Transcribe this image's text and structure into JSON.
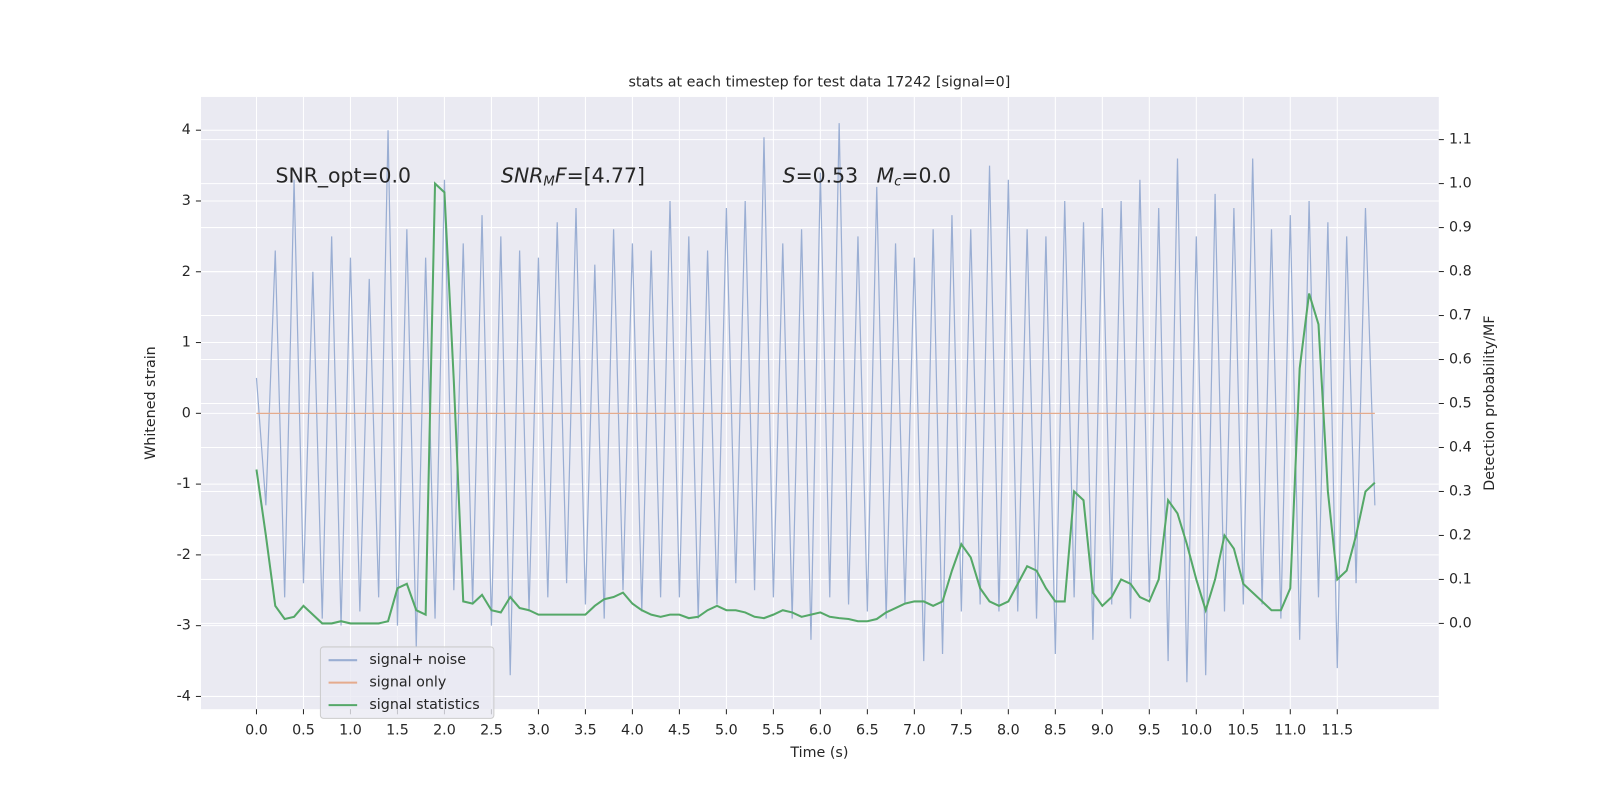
{
  "chart_data": {
    "type": "line",
    "title": "stats at each timestep for test data 17242 [signal=0]",
    "xlabel": "Time (s)",
    "ylabel": "Whitened strain",
    "y2label": "Detection probability/MF",
    "x": [
      0,
      0.1,
      0.2,
      0.3,
      0.4,
      0.5,
      0.6,
      0.7,
      0.8,
      0.9,
      1,
      1.1,
      1.2,
      1.3,
      1.4,
      1.5,
      1.6,
      1.7,
      1.8,
      1.9,
      2,
      2.1,
      2.2,
      2.3,
      2.4,
      2.5,
      2.6,
      2.7,
      2.8,
      2.9,
      3,
      3.1,
      3.2,
      3.3,
      3.4,
      3.5,
      3.6,
      3.7,
      3.8,
      3.9,
      4,
      4.1,
      4.2,
      4.3,
      4.4,
      4.5,
      4.6,
      4.7,
      4.8,
      4.9,
      5,
      5.1,
      5.2,
      5.3,
      5.4,
      5.5,
      5.6,
      5.7,
      5.8,
      5.9,
      6,
      6.1,
      6.2,
      6.3,
      6.4,
      6.5,
      6.6,
      6.7,
      6.8,
      6.9,
      7,
      7.1,
      7.2,
      7.3,
      7.4,
      7.5,
      7.6,
      7.7,
      7.8,
      7.9,
      8,
      8.1,
      8.2,
      8.3,
      8.4,
      8.5,
      8.6,
      8.7,
      8.8,
      8.9,
      9,
      9.1,
      9.2,
      9.3,
      9.4,
      9.5,
      9.6,
      9.7,
      9.8,
      9.9,
      10,
      10.1,
      10.2,
      10.3,
      10.4,
      10.5,
      10.6,
      10.7,
      10.8,
      10.9,
      11,
      11.1,
      11.2,
      11.3,
      11.4,
      11.5,
      11.6,
      11.7,
      11.8,
      11.9
    ],
    "series": [
      {
        "name": "signal+ noise",
        "color": "#9aaed3",
        "values": [
          0.5,
          -1.3,
          2.3,
          -2.6,
          3.3,
          -2.4,
          2.0,
          -2.9,
          2.5,
          -3.0,
          2.2,
          -2.8,
          1.9,
          -2.6,
          4.0,
          -3.0,
          2.6,
          -3.3,
          2.2,
          -2.9,
          3.3,
          -2.5,
          2.4,
          -2.7,
          2.8,
          -3.0,
          2.5,
          -3.7,
          2.3,
          -2.8,
          2.2,
          -2.6,
          2.7,
          -2.4,
          2.9,
          -2.7,
          2.1,
          -2.9,
          2.6,
          -2.5,
          2.4,
          -2.8,
          2.3,
          -2.6,
          3.0,
          -2.6,
          2.5,
          -2.9,
          2.3,
          -2.7,
          2.9,
          -2.4,
          3.0,
          -2.5,
          3.9,
          -2.6,
          2.4,
          -2.9,
          2.6,
          -3.2,
          3.4,
          -2.6,
          4.1,
          -2.7,
          2.5,
          -2.8,
          3.2,
          -2.9,
          2.4,
          -2.7,
          2.2,
          -3.5,
          2.6,
          -3.4,
          2.8,
          -2.8,
          2.6,
          -2.7,
          3.5,
          -2.8,
          3.3,
          -2.8,
          2.6,
          -2.9,
          2.5,
          -3.4,
          3.0,
          -2.6,
          2.7,
          -3.2,
          2.9,
          -2.7,
          3.0,
          -2.9,
          3.3,
          -2.6,
          2.9,
          -3.5,
          3.6,
          -3.8,
          2.5,
          -3.7,
          3.1,
          -2.8,
          2.9,
          -2.7,
          3.6,
          -2.7,
          2.6,
          -2.9,
          2.8,
          -3.2,
          3.0,
          -2.6,
          2.7,
          -3.6,
          2.5,
          -2.4,
          2.9,
          -1.3
        ]
      },
      {
        "name": "signal only",
        "color": "#e5ab8d",
        "values": [
          0,
          0,
          0,
          0,
          0,
          0,
          0,
          0,
          0,
          0,
          0,
          0,
          0,
          0,
          0,
          0,
          0,
          0,
          0,
          0,
          0,
          0,
          0,
          0,
          0,
          0,
          0,
          0,
          0,
          0,
          0,
          0,
          0,
          0,
          0,
          0,
          0,
          0,
          0,
          0,
          0,
          0,
          0,
          0,
          0,
          0,
          0,
          0,
          0,
          0,
          0,
          0,
          0,
          0,
          0,
          0,
          0,
          0,
          0,
          0,
          0,
          0,
          0,
          0,
          0,
          0,
          0,
          0,
          0,
          0,
          0,
          0,
          0,
          0,
          0,
          0,
          0,
          0,
          0,
          0,
          0,
          0,
          0,
          0,
          0,
          0,
          0,
          0,
          0,
          0,
          0,
          0,
          0,
          0,
          0,
          0,
          0,
          0,
          0,
          0,
          0,
          0,
          0,
          0,
          0,
          0,
          0,
          0,
          0,
          0,
          0,
          0,
          0,
          0,
          0,
          0,
          0,
          0,
          0,
          0
        ]
      },
      {
        "name": "signal statistics",
        "color": "#55a868",
        "axis": "y2",
        "values": [
          0.35,
          0.2,
          0.04,
          0.01,
          0.015,
          0.04,
          0.02,
          0.0,
          0.0,
          0.005,
          0.0,
          0.0,
          0.0,
          0.0,
          0.005,
          0.08,
          0.09,
          0.03,
          0.02,
          1.0,
          0.98,
          0.55,
          0.05,
          0.045,
          0.065,
          0.03,
          0.025,
          0.06,
          0.035,
          0.03,
          0.02,
          0.02,
          0.02,
          0.02,
          0.02,
          0.02,
          0.04,
          0.055,
          0.06,
          0.07,
          0.045,
          0.03,
          0.02,
          0.015,
          0.02,
          0.02,
          0.012,
          0.015,
          0.03,
          0.04,
          0.03,
          0.03,
          0.025,
          0.015,
          0.012,
          0.02,
          0.03,
          0.025,
          0.015,
          0.02,
          0.025,
          0.015,
          0.012,
          0.01,
          0.005,
          0.005,
          0.01,
          0.025,
          0.035,
          0.045,
          0.05,
          0.05,
          0.04,
          0.05,
          0.12,
          0.18,
          0.15,
          0.08,
          0.05,
          0.04,
          0.05,
          0.09,
          0.13,
          0.12,
          0.08,
          0.05,
          0.05,
          0.3,
          0.28,
          0.07,
          0.04,
          0.06,
          0.1,
          0.09,
          0.06,
          0.05,
          0.1,
          0.28,
          0.25,
          0.18,
          0.1,
          0.03,
          0.1,
          0.2,
          0.17,
          0.09,
          0.07,
          0.05,
          0.03,
          0.03,
          0.08,
          0.58,
          0.75,
          0.68,
          0.3,
          0.1,
          0.12,
          0.2,
          0.3,
          0.32
        ]
      }
    ],
    "annotations": [
      {
        "parts": [
          "SNR_opt=0.0"
        ]
      },
      {
        "parts": [
          "SNR",
          "M",
          "F",
          "=[4.77]"
        ]
      },
      {
        "parts": [
          "S",
          "=0.53"
        ]
      },
      {
        "parts": [
          "M",
          "c",
          "=0.0"
        ]
      }
    ],
    "xlim": [
      -0.59,
      12.58
    ],
    "xticks": [
      {
        "value": 0,
        "label": "0.0"
      },
      0.5,
      {
        "value": 1,
        "label": "1.0"
      },
      1.5,
      {
        "value": 2,
        "label": "2.0"
      },
      2.5,
      {
        "value": 3,
        "label": "3.0"
      },
      3.5,
      {
        "value": 4,
        "label": "4.0"
      },
      4.5,
      {
        "value": 5,
        "label": "5.0"
      },
      5.5,
      {
        "value": 6,
        "label": "6.0"
      },
      6.5,
      {
        "value": 7,
        "label": "7.0"
      },
      7.5,
      {
        "value": 8,
        "label": "8.0"
      },
      8.5,
      {
        "value": 9,
        "label": "9.0"
      },
      9.5,
      {
        "value": 10,
        "label": "10.0"
      },
      10.5,
      {
        "value": 11,
        "label": "11.0"
      },
      11.5
    ],
    "ylim": [
      -4.18,
      4.47
    ],
    "yticks": [
      -4,
      -3,
      -2,
      -1,
      0,
      1,
      2,
      3,
      4
    ],
    "y2lim": [
      -0.195,
      1.197
    ],
    "y2ticks": [
      {
        "value": 0,
        "label": "0.0"
      },
      0.1,
      0.2,
      0.3,
      0.4,
      0.5,
      0.6,
      0.7,
      0.8,
      0.9,
      {
        "value": 1,
        "label": "1.0"
      },
      1.1
    ],
    "grid": true,
    "legend": "lower left"
  }
}
